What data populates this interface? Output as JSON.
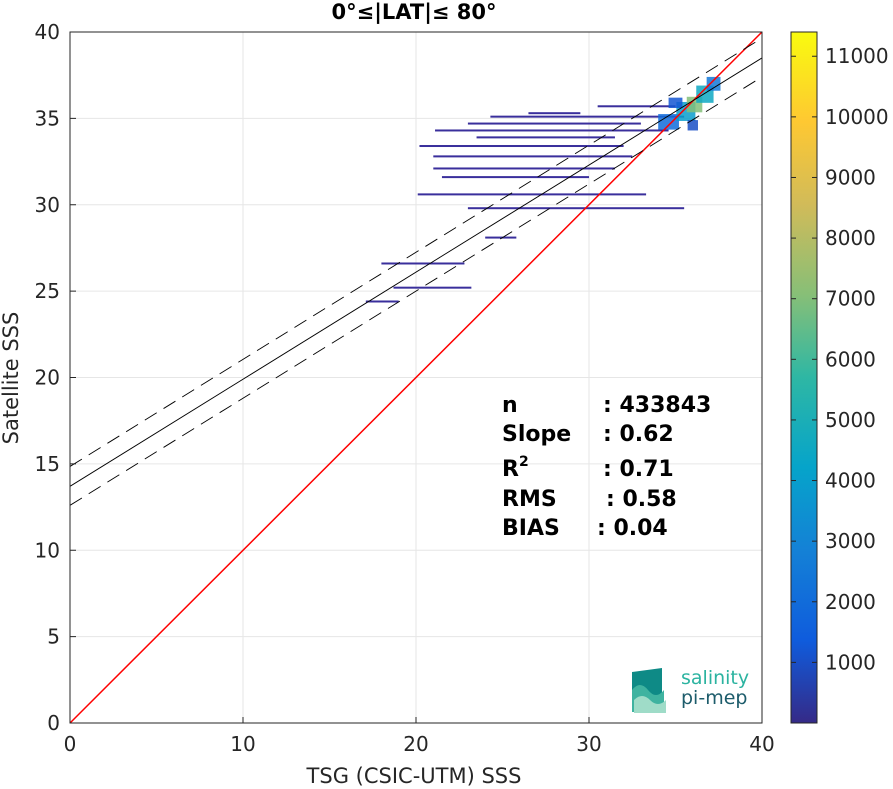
{
  "chart_data": {
    "type": "heatmap",
    "title": "0°≤|LAT|≤ 80°",
    "xlabel": "TSG (CSIC-UTM) SSS",
    "ylabel": "Satellite SSS",
    "xlim": [
      0,
      40
    ],
    "ylim": [
      0,
      40
    ],
    "xticks": [
      "0",
      "10",
      "20",
      "30",
      "40"
    ],
    "yticks": [
      "0",
      "5",
      "10",
      "15",
      "20",
      "25",
      "30",
      "35",
      "40"
    ],
    "grid": true,
    "colorbar": {
      "min": 0,
      "max": 11400,
      "ticks": [
        "1000",
        "2000",
        "3000",
        "4000",
        "5000",
        "6000",
        "7000",
        "8000",
        "9000",
        "10000",
        "11000"
      ],
      "colormap": "parula"
    },
    "lines": [
      {
        "style": "identity",
        "color": "#ff0000",
        "x": [
          0,
          40
        ],
        "y": [
          0,
          40
        ]
      },
      {
        "style": "fit",
        "color": "#000000",
        "intercept": 13.7,
        "slope": 0.62
      },
      {
        "style": "fit-plus",
        "color": "#000000",
        "dashed": true,
        "intercept": 14.85,
        "slope": 0.62
      },
      {
        "style": "fit-minus",
        "color": "#000000",
        "dashed": true,
        "intercept": 12.6,
        "slope": 0.62
      }
    ],
    "density_segments": [
      {
        "y": 24.4,
        "x0": 17.1,
        "x1": 19.0
      },
      {
        "y": 25.2,
        "x0": 18.7,
        "x1": 23.2
      },
      {
        "y": 26.6,
        "x0": 18.0,
        "x1": 22.8
      },
      {
        "y": 28.1,
        "x0": 24.0,
        "x1": 25.8
      },
      {
        "y": 29.8,
        "x0": 23.0,
        "x1": 35.5
      },
      {
        "y": 30.6,
        "x0": 20.1,
        "x1": 33.3
      },
      {
        "y": 31.6,
        "x0": 21.5,
        "x1": 30.0
      },
      {
        "y": 32.1,
        "x0": 21.0,
        "x1": 31.5
      },
      {
        "y": 32.8,
        "x0": 21.0,
        "x1": 32.5
      },
      {
        "y": 33.4,
        "x0": 20.2,
        "x1": 32.0
      },
      {
        "y": 33.9,
        "x0": 23.5,
        "x1": 31.5
      },
      {
        "y": 34.3,
        "x0": 21.1,
        "x1": 34.6
      },
      {
        "y": 34.7,
        "x0": 23.0,
        "x1": 33.0
      },
      {
        "y": 35.1,
        "x0": 24.3,
        "x1": 35.5
      },
      {
        "y": 35.3,
        "x0": 26.5,
        "x1": 29.5
      },
      {
        "y": 35.7,
        "x0": 30.5,
        "x1": 35.0
      }
    ],
    "density_core": [
      {
        "x": 34.6,
        "y": 34.8,
        "w": 1.2,
        "h": 0.9,
        "level": 2000
      },
      {
        "x": 35.6,
        "y": 35.4,
        "w": 1.1,
        "h": 1.1,
        "level": 4000
      },
      {
        "x": 36.1,
        "y": 35.8,
        "w": 0.9,
        "h": 0.9,
        "level": 7000
      },
      {
        "x": 36.7,
        "y": 36.4,
        "w": 1.0,
        "h": 1.0,
        "level": 4500
      },
      {
        "x": 37.2,
        "y": 37.0,
        "w": 0.8,
        "h": 0.8,
        "level": 2500
      },
      {
        "x": 35.0,
        "y": 35.9,
        "w": 0.8,
        "h": 0.6,
        "level": 1200
      },
      {
        "x": 36.0,
        "y": 34.6,
        "w": 0.6,
        "h": 0.6,
        "level": 1000
      }
    ],
    "stats": [
      {
        "label": "n",
        "value": ": 433843"
      },
      {
        "label": "Slope",
        "value": ": 0.62"
      },
      {
        "label": "R",
        "sup": "2",
        "value": ": 0.71"
      },
      {
        "label": "RMS",
        "value": ": 0.58"
      },
      {
        "label": "BIAS",
        "value": ": 0.04"
      }
    ]
  },
  "logo": {
    "line1": "salinity",
    "line2": "pi-mep"
  }
}
